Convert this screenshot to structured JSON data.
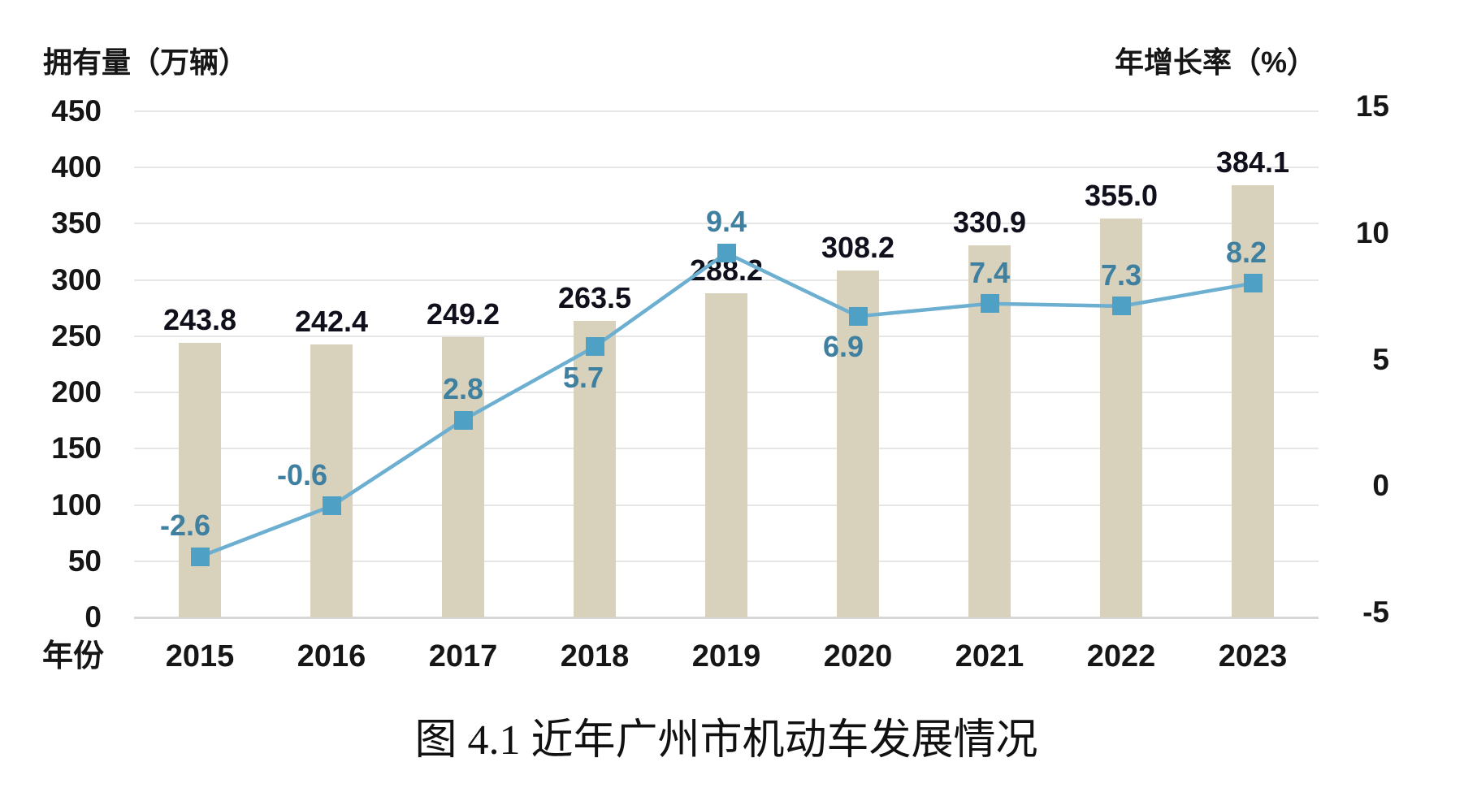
{
  "chart_data": {
    "type": "bar+line",
    "title": "图 4.1 近年广州市机动车发展情况",
    "grid": true,
    "legend": "none",
    "x_axis": {
      "title": "年份",
      "categories": [
        "2015",
        "2016",
        "2017",
        "2018",
        "2019",
        "2020",
        "2021",
        "2022",
        "2023"
      ]
    },
    "left_axis": {
      "title": "拥有量（万辆）",
      "min": 0,
      "max": 450,
      "tick_step": 50,
      "ticks": [
        "450",
        "400",
        "350",
        "300",
        "250",
        "200",
        "150",
        "100",
        "50",
        "0"
      ]
    },
    "right_axis": {
      "title": "年增长率（%）",
      "min": -5,
      "max": 15,
      "tick_step": 5,
      "ticks": [
        "15",
        "10",
        "5",
        "0",
        "-5"
      ]
    },
    "series": [
      {
        "name": "拥有量",
        "render": "bar",
        "axis": "left",
        "color": "#D8D2BD",
        "label_color": "#10101c",
        "values": [
          243.8,
          242.4,
          249.2,
          263.5,
          288.2,
          308.2,
          330.9,
          355.0,
          384.1
        ],
        "labels": [
          "243.8",
          "242.4",
          "249.2",
          "263.5",
          "288.2",
          "308.2",
          "330.9",
          "355.0",
          "384.1"
        ]
      },
      {
        "name": "年增长率",
        "render": "line",
        "axis": "right",
        "color": "#6CAFD0",
        "marker_color": "#4EA0C5",
        "marker_shape": "square",
        "label_color": "#3F7FA0",
        "values": [
          -2.6,
          -0.6,
          2.8,
          5.7,
          9.4,
          6.9,
          7.4,
          7.3,
          8.2
        ],
        "labels": [
          "-2.6",
          "-0.6",
          "2.8",
          "5.7",
          "9.4",
          "6.9",
          "7.4",
          "7.3",
          "8.2"
        ],
        "label_positions": [
          "above",
          "above",
          "above",
          "below",
          "above",
          "below",
          "above",
          "above",
          "above"
        ]
      }
    ]
  }
}
